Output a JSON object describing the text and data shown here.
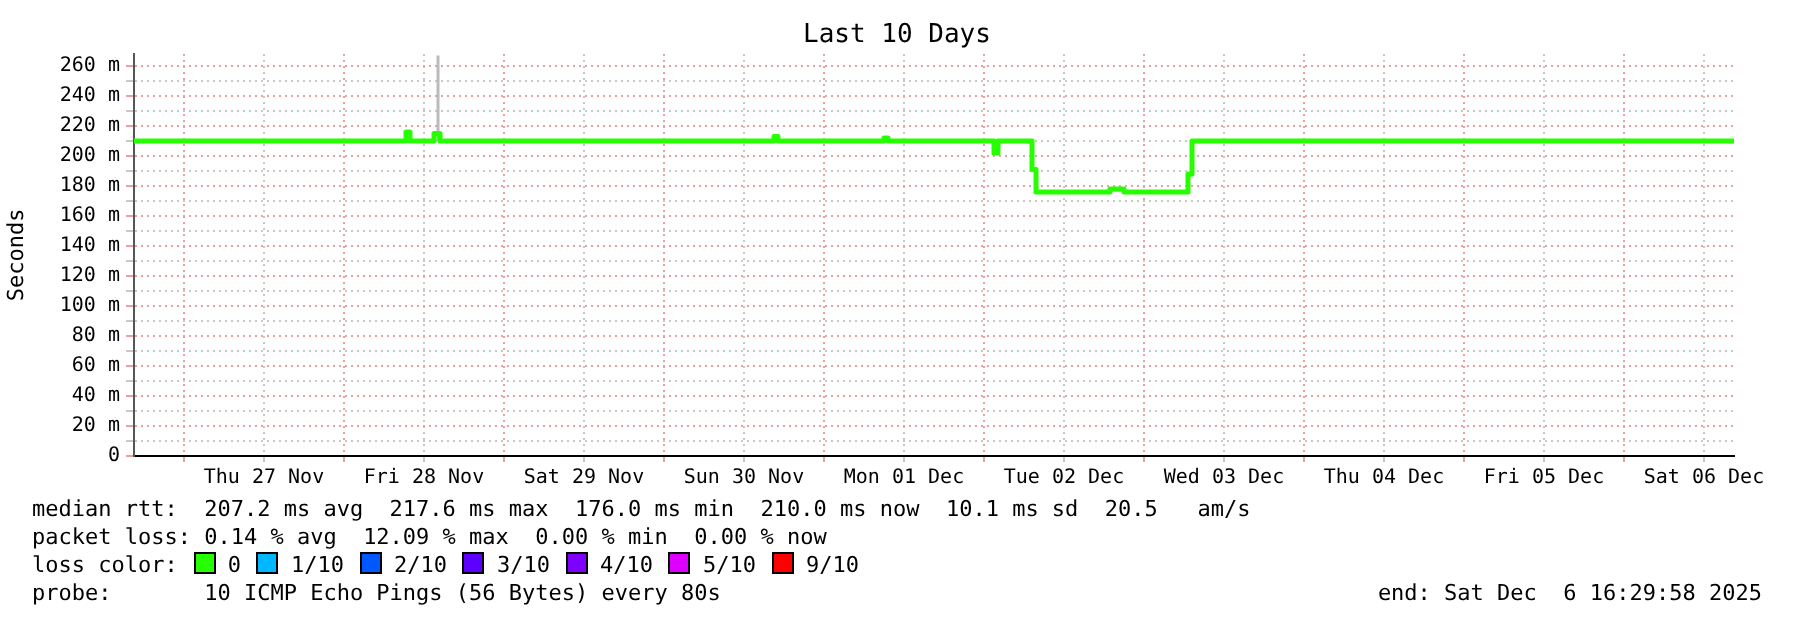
{
  "chart_data": {
    "type": "step",
    "title": "Last 10 Days",
    "ylabel": "Seconds",
    "legend_title": "loss color:",
    "legend": "bottom",
    "xlim": [
      "2025-11-26T16:30",
      "2025-12-06T16:30"
    ],
    "xticks": [
      {
        "value": "2025-11-27T00:00",
        "label": null
      },
      {
        "value": "2025-11-27T12:00",
        "label": "Thu 27 Nov"
      },
      {
        "value": "2025-11-28T00:00",
        "label": null
      },
      {
        "value": "2025-11-28T12:00",
        "label": "Fri 28 Nov"
      },
      {
        "value": "2025-11-29T00:00",
        "label": null
      },
      {
        "value": "2025-11-29T12:00",
        "label": "Sat 29 Nov"
      },
      {
        "value": "2025-11-30T00:00",
        "label": null
      },
      {
        "value": "2025-11-30T12:00",
        "label": "Sun 30 Nov"
      },
      {
        "value": "2025-12-01T00:00",
        "label": null
      },
      {
        "value": "2025-12-01T12:00",
        "label": "Mon 01 Dec"
      },
      {
        "value": "2025-12-02T00:00",
        "label": null
      },
      {
        "value": "2025-12-02T12:00",
        "label": "Tue 02 Dec"
      },
      {
        "value": "2025-12-03T00:00",
        "label": null
      },
      {
        "value": "2025-12-03T12:00",
        "label": "Wed 03 Dec"
      },
      {
        "value": "2025-12-04T00:00",
        "label": null
      },
      {
        "value": "2025-12-04T12:00",
        "label": "Thu 04 Dec"
      },
      {
        "value": "2025-12-05T00:00",
        "label": null
      },
      {
        "value": "2025-12-05T12:00",
        "label": "Fri 05 Dec"
      },
      {
        "value": "2025-12-06T00:00",
        "label": null
      },
      {
        "value": "2025-12-06T12:00",
        "label": "Sat 06 Dec"
      }
    ],
    "ylim": [
      0,
      268
    ],
    "yticks": [
      0,
      {
        "value": 10,
        "label": null
      },
      {
        "value": 20,
        "label": "20 m"
      },
      {
        "value": 30,
        "label": null
      },
      {
        "value": 40,
        "label": "40 m"
      },
      {
        "value": 50,
        "label": null
      },
      {
        "value": 60,
        "label": "60 m"
      },
      {
        "value": 70,
        "label": null
      },
      {
        "value": 80,
        "label": "80 m"
      },
      {
        "value": 90,
        "label": null
      },
      {
        "value": 100,
        "label": "100 m"
      },
      {
        "value": 110,
        "label": null
      },
      {
        "value": 120,
        "label": "120 m"
      },
      {
        "value": 130,
        "label": null
      },
      {
        "value": 140,
        "label": "140 m"
      },
      {
        "value": 150,
        "label": null
      },
      {
        "value": 160,
        "label": "160 m"
      },
      {
        "value": 170,
        "label": null
      },
      {
        "value": 180,
        "label": "180 m"
      },
      {
        "value": 190,
        "label": null
      },
      {
        "value": 200,
        "label": "200 m"
      },
      {
        "value": 210,
        "label": null
      },
      {
        "value": 220,
        "label": "220 m"
      },
      {
        "value": 230,
        "label": null
      },
      {
        "value": 240,
        "label": "240 m"
      },
      {
        "value": 250,
        "label": null
      },
      {
        "value": 260,
        "label": "260 m"
      }
    ],
    "grid": true,
    "marker": "none",
    "line_style": "solid",
    "series": [
      {
        "name": "0",
        "color": "#26ff00",
        "x": [
          "2025-11-26T16:30",
          "2025-11-28T08:24",
          "2025-11-28T09:18",
          "2025-11-28T09:54",
          "2025-11-28T13:30",
          "2025-11-28T14:24",
          "2025-11-30T16:30",
          "2025-11-30T17:06",
          "2025-12-01T09:00",
          "2025-12-01T09:36",
          "2025-12-02T01:30",
          "2025-12-02T02:06",
          "2025-12-02T07:12",
          "2025-12-02T07:48",
          "2025-12-02T18:54",
          "2025-12-02T21:00",
          "2025-12-03T06:36",
          "2025-12-03T07:12",
          "2025-12-06T16:30"
        ],
        "values": [
          210,
          210,
          216,
          210,
          215,
          210,
          213,
          210,
          212,
          210,
          202,
          210,
          191,
          176,
          178,
          176,
          188,
          210,
          210
        ]
      },
      {
        "color": "#bbbbbb",
        "x": [
          "2025-11-28T14:06",
          "2025-11-28T14:06"
        ],
        "values": [
          210,
          267
        ]
      },
      {
        "name": "1/10",
        "color": "#00b8ff"
      },
      {
        "name": "2/10",
        "color": "#0059ff"
      },
      {
        "name": "3/10",
        "color": "#5e00ff"
      },
      {
        "name": "4/10",
        "color": "#7e00ff"
      },
      {
        "name": "5/10",
        "color": "#dd00ff"
      },
      {
        "name": "9/10",
        "color": "#ff0000"
      }
    ],
    "annotations": [
      "median rtt:  207.2 ms avg  217.6 ms max  176.0 ms min  210.0 ms now  10.1 ms sd  20.5   am/s",
      "packet loss: 0.14 % avg  12.09 % max  0.00 % min  0.00 % now",
      "probe:       10 ICMP Echo Pings (56 Bytes) every 80s",
      "end: Sat Dec  6 16:29:58 2025"
    ]
  }
}
